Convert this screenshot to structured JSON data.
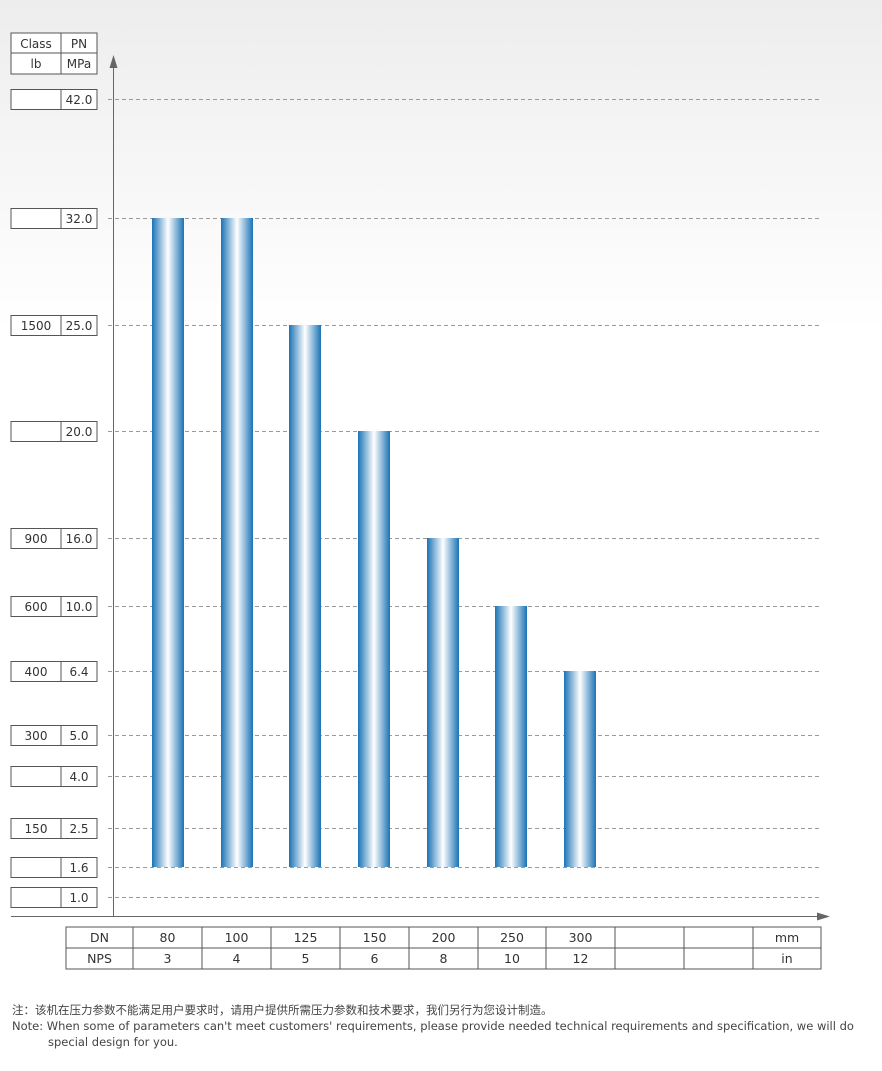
{
  "chart_data": {
    "type": "bar",
    "title": "",
    "xlabel": "",
    "ylabel": "",
    "y_header": {
      "class_label": "Class",
      "pn_label": "PN",
      "class_unit": "lb",
      "pn_unit": "MPa"
    },
    "y_levels": [
      {
        "class": "",
        "pn": "42.0",
        "value": 42.0
      },
      {
        "class": "",
        "pn": "32.0",
        "value": 32.0
      },
      {
        "class": "1500",
        "pn": "25.0",
        "value": 25.0
      },
      {
        "class": "",
        "pn": "20.0",
        "value": 20.0
      },
      {
        "class": "900",
        "pn": "16.0",
        "value": 16.0
      },
      {
        "class": "600",
        "pn": "10.0",
        "value": 10.0
      },
      {
        "class": "400",
        "pn": "6.4",
        "value": 6.4
      },
      {
        "class": "300",
        "pn": "5.0",
        "value": 5.0
      },
      {
        "class": "",
        "pn": "4.0",
        "value": 4.0
      },
      {
        "class": "150",
        "pn": "2.5",
        "value": 2.5
      },
      {
        "class": "",
        "pn": "1.6",
        "value": 1.6
      },
      {
        "class": "",
        "pn": "1.0",
        "value": 1.0
      }
    ],
    "x_table": {
      "row1_label": "DN",
      "row2_label": "NPS",
      "row1_unit": "mm",
      "row2_unit": "in",
      "dn": [
        "80",
        "100",
        "125",
        "150",
        "200",
        "250",
        "300",
        "",
        ""
      ],
      "nps": [
        "3",
        "4",
        "5",
        "6",
        "8",
        "10",
        "12",
        "",
        ""
      ]
    },
    "categories": [
      "80",
      "100",
      "125",
      "150",
      "200",
      "250",
      "300"
    ],
    "series": [
      {
        "bar_min": [
          1.6,
          1.6,
          1.6,
          1.6,
          1.6,
          1.6,
          1.6
        ],
        "values": [
          32.0,
          32.0,
          25.0,
          20.0,
          16.0,
          10.0,
          6.4
        ]
      }
    ],
    "grid": "dashed horizontal",
    "legend": "none"
  },
  "colors": {
    "bar_edge": "#1a73b5",
    "bar_center": "#ffffff",
    "grid": "#9a9a9a",
    "axis": "#666666",
    "box_border": "#555555"
  },
  "note": {
    "cn": "注：该机在压力参数不能满足用户要求时，请用户提供所需压力参数和技术要求，我们另行为您设计制造。",
    "en": "Note: When some of parameters can't meet customers' requirements, please provide needed technical requirements and specification, we will do special design for you."
  }
}
